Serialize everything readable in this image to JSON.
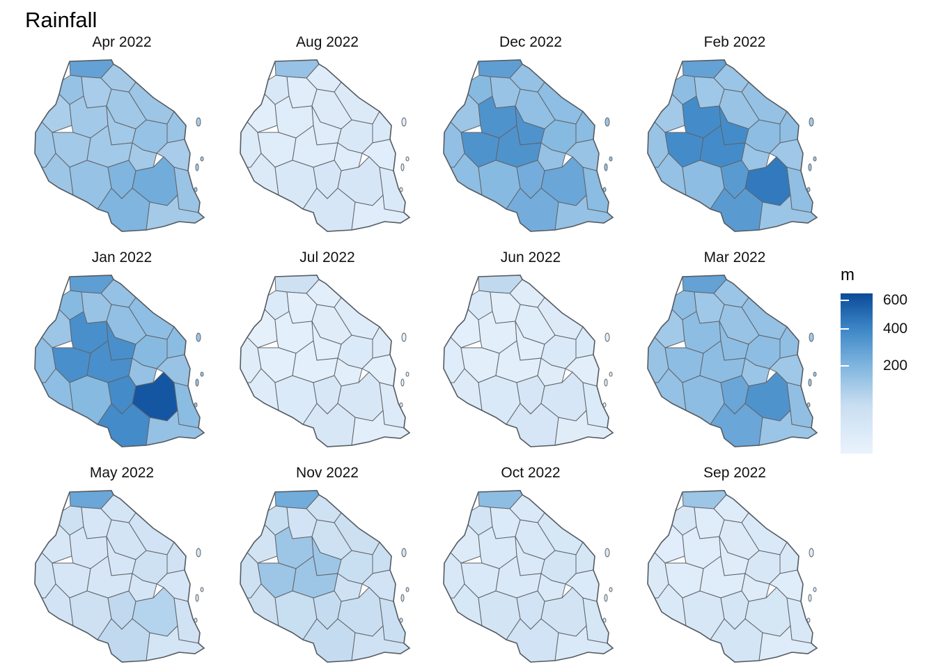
{
  "title": "Rainfall",
  "legend": {
    "title": "m",
    "ticks": [
      {
        "label": "600",
        "value": 600
      },
      {
        "label": "400",
        "value": 400
      },
      {
        "label": "200",
        "value": 200
      }
    ],
    "colors": [
      "#eaf3fd",
      "#c9def1",
      "#7fb5df",
      "#3c86c6",
      "#0b4a99"
    ]
  },
  "panels": [
    {
      "label": "Apr 2022",
      "base": 0.35,
      "north": 0.6,
      "central": 0.38,
      "southeast": 0.55
    },
    {
      "label": "Aug 2022",
      "base": 0.06,
      "north": 0.42,
      "central": 0.08,
      "southeast": 0.15
    },
    {
      "label": "Dec 2022",
      "base": 0.4,
      "north": 0.62,
      "central": 0.68,
      "southeast": 0.58
    },
    {
      "label": "Feb 2022",
      "base": 0.38,
      "north": 0.6,
      "central": 0.72,
      "southeast": 0.8
    },
    {
      "label": "Jan 2022",
      "base": 0.4,
      "north": 0.62,
      "central": 0.7,
      "southeast": 0.95
    },
    {
      "label": "Jul 2022",
      "base": 0.04,
      "north": 0.22,
      "central": 0.05,
      "southeast": 0.14
    },
    {
      "label": "Jun 2022",
      "base": 0.05,
      "north": 0.28,
      "central": 0.06,
      "southeast": 0.15
    },
    {
      "label": "Mar 2022",
      "base": 0.38,
      "north": 0.6,
      "central": 0.45,
      "southeast": 0.68
    },
    {
      "label": "May 2022",
      "base": 0.14,
      "north": 0.58,
      "central": 0.15,
      "southeast": 0.32
    },
    {
      "label": "Nov 2022",
      "base": 0.18,
      "north": 0.55,
      "central": 0.4,
      "southeast": 0.25
    },
    {
      "label": "Oct 2022",
      "base": 0.1,
      "north": 0.45,
      "central": 0.12,
      "southeast": 0.18
    },
    {
      "label": "Sep 2022",
      "base": 0.07,
      "north": 0.4,
      "central": 0.08,
      "southeast": 0.16
    }
  ]
}
